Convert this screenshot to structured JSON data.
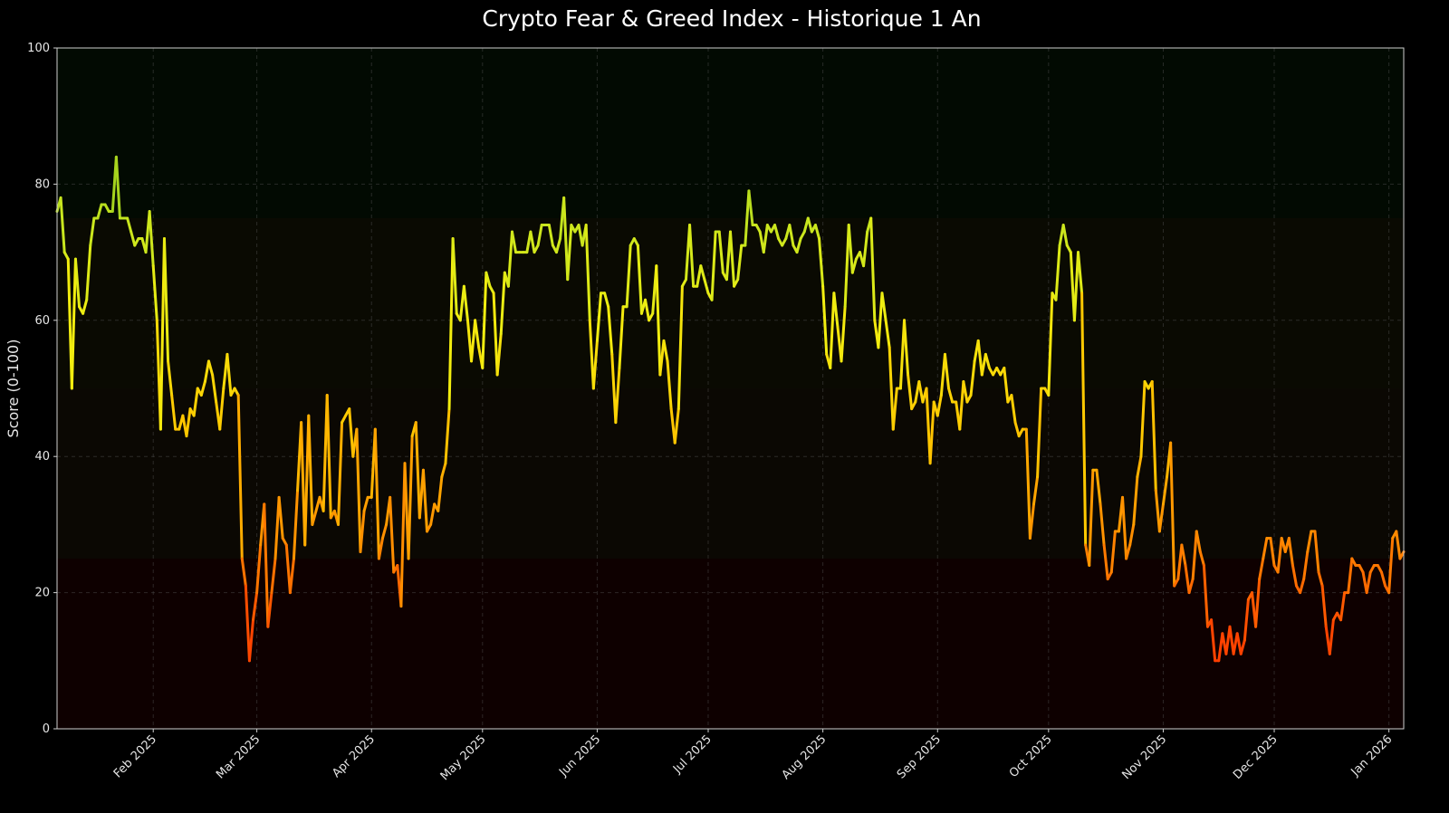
{
  "chart_data": {
    "type": "line",
    "title": "Crypto Fear & Greed Index - Historique 1 An",
    "xlabel": "",
    "ylabel": "Score (0-100)",
    "ylim": [
      0,
      100
    ],
    "yticks": [
      0,
      20,
      40,
      60,
      80,
      100
    ],
    "x_unit": "days",
    "xlim": [
      0,
      364
    ],
    "xticks": [
      {
        "day": 26,
        "label": "Feb 2025"
      },
      {
        "day": 54,
        "label": "Mar 2025"
      },
      {
        "day": 85,
        "label": "Apr 2025"
      },
      {
        "day": 115,
        "label": "May 2025"
      },
      {
        "day": 146,
        "label": "Jun 2025"
      },
      {
        "day": 176,
        "label": "Jul 2025"
      },
      {
        "day": 207,
        "label": "Aug 2025"
      },
      {
        "day": 238,
        "label": "Sep 2025"
      },
      {
        "day": 268,
        "label": "Oct 2025"
      },
      {
        "day": 299,
        "label": "Nov 2025"
      },
      {
        "day": 329,
        "label": "Dec 2025"
      },
      {
        "day": 360,
        "label": "Jan 2026"
      }
    ],
    "grid": true,
    "zones": [
      {
        "from": 0,
        "to": 25,
        "color": "#0e0000"
      },
      {
        "from": 25,
        "to": 50,
        "color": "#0b0803"
      },
      {
        "from": 50,
        "to": 75,
        "color": "#0a0a02"
      },
      {
        "from": 75,
        "to": 100,
        "color": "#020a02"
      }
    ],
    "color_stops": [
      {
        "value": 0,
        "color": "#ff1e00"
      },
      {
        "value": 15,
        "color": "#ff4a00"
      },
      {
        "value": 28,
        "color": "#ff8c00"
      },
      {
        "value": 45,
        "color": "#ffc800"
      },
      {
        "value": 60,
        "color": "#f2ee10"
      },
      {
        "value": 74,
        "color": "#c8e61e"
      },
      {
        "value": 85,
        "color": "#88c41c"
      }
    ],
    "values": [
      76,
      78,
      70,
      69,
      50,
      69,
      62,
      61,
      63,
      71,
      75,
      75,
      77,
      77,
      76,
      76,
      84,
      75,
      75,
      75,
      73,
      71,
      72,
      72,
      70,
      76,
      68,
      60,
      44,
      72,
      54,
      49,
      44,
      44,
      46,
      43,
      47,
      46,
      50,
      49,
      51,
      54,
      52,
      48,
      44,
      50,
      55,
      49,
      50,
      49,
      25,
      21,
      10,
      16,
      20,
      27,
      33,
      15,
      20,
      25,
      34,
      28,
      27,
      20,
      25,
      35,
      45,
      27,
      46,
      30,
      32,
      34,
      32,
      49,
      31,
      32,
      30,
      45,
      46,
      47,
      40,
      44,
      26,
      32,
      34,
      34,
      44,
      25,
      28,
      30,
      34,
      23,
      24,
      18,
      39,
      25,
      43,
      45,
      31,
      38,
      29,
      30,
      33,
      32,
      37,
      39,
      47,
      72,
      61,
      60,
      65,
      60,
      54,
      60,
      56,
      53,
      67,
      65,
      64,
      52,
      58,
      67,
      65,
      73,
      70,
      70,
      70,
      70,
      73,
      70,
      71,
      74,
      74,
      74,
      71,
      70,
      72,
      78,
      66,
      74,
      73,
      74,
      71,
      74,
      60,
      50,
      57,
      64,
      64,
      62,
      55,
      45,
      53,
      62,
      62,
      71,
      72,
      71,
      61,
      63,
      60,
      61,
      68,
      52,
      57,
      54,
      47,
      42,
      47,
      65,
      66,
      74,
      65,
      65,
      68,
      66,
      64,
      63,
      73,
      73,
      67,
      66,
      73,
      65,
      66,
      71,
      71,
      79,
      74,
      74,
      73,
      70,
      74,
      73,
      74,
      72,
      71,
      72,
      74,
      71,
      70,
      72,
      73,
      75,
      73,
      74,
      72,
      65,
      55,
      53,
      64,
      59,
      54,
      62,
      74,
      67,
      69,
      70,
      68,
      73,
      75,
      60,
      56,
      64,
      60,
      56,
      44,
      50,
      50,
      60,
      52,
      47,
      48,
      51,
      48,
      50,
      39,
      48,
      46,
      49,
      55,
      50,
      48,
      48,
      44,
      51,
      48,
      49,
      54,
      57,
      52,
      55,
      53,
      52,
      53,
      52,
      53,
      48,
      49,
      45,
      43,
      44,
      44,
      28,
      33,
      37,
      50,
      50,
      49,
      64,
      63,
      71,
      74,
      71,
      70,
      60,
      70,
      64,
      27,
      24,
      38,
      38,
      33,
      27,
      22,
      23,
      29,
      29,
      34,
      25,
      27,
      30,
      37,
      40,
      51,
      50,
      51,
      35,
      29,
      33,
      37,
      42,
      21,
      22,
      27,
      24,
      20,
      22,
      29,
      26,
      24,
      15,
      16,
      10,
      10,
      14,
      11,
      15,
      11,
      14,
      11,
      13,
      19,
      20,
      15,
      22,
      25,
      28,
      28,
      24,
      23,
      28,
      26,
      28,
      24,
      21,
      20,
      22,
      26,
      29,
      29,
      23,
      21,
      15,
      11,
      16,
      17,
      16,
      20,
      20,
      25,
      24,
      24,
      23,
      20,
      23,
      24,
      24,
      23,
      21,
      20,
      28,
      29,
      25,
      26
    ]
  }
}
